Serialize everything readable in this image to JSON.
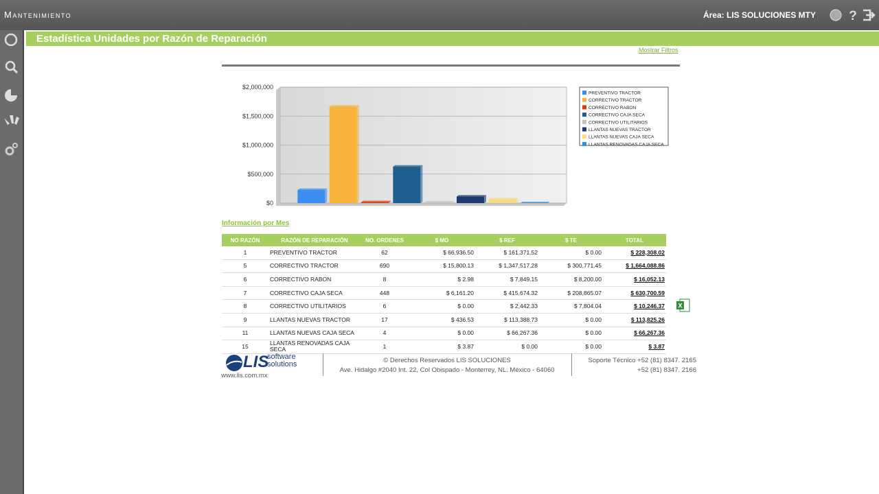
{
  "header": {
    "app": "Mantenimiento",
    "area": "Área: LIS SOLUCIONES MTY"
  },
  "page_title": "Estadística Unidades por Razón de Reparación",
  "filter_link": "Mostrar Filtros",
  "chart_data": {
    "type": "bar",
    "categories": [
      null
    ],
    "series": [
      {
        "name": "PREVENTIVO TRACTOR",
        "color": "#3b8ef0",
        "values": [
          228308.02
        ]
      },
      {
        "name": "CORRECTIVO TRACTOR",
        "color": "#f7b33b",
        "values": [
          1664088.86
        ]
      },
      {
        "name": "CORRECTIVO RABON",
        "color": "#d83a10",
        "values": [
          16052.13
        ]
      },
      {
        "name": "CORRECTIVO CAJA SECA",
        "color": "#1f5f8f",
        "values": [
          630700.59
        ]
      },
      {
        "name": "CORRECTIVO UTILITARIOS",
        "color": "#c0c0c8",
        "values": [
          10246.37
        ]
      },
      {
        "name": "LLANTAS NUEVAS TRACTOR",
        "color": "#1c3a6e",
        "values": [
          113825.26
        ]
      },
      {
        "name": "LLANTAS NUEVAS CAJA SECA",
        "color": "#f5dc85",
        "values": [
          66267.36
        ]
      },
      {
        "name": "LLANTAS RENOVADAS CAJA SECA",
        "color": "#2f8fd8",
        "values": [
          3.87
        ]
      }
    ],
    "ylim": [
      0,
      2000000
    ],
    "yticks": [
      {
        "value": 0,
        "label": "$0"
      },
      {
        "value": 500000,
        "label": "$500,000"
      },
      {
        "value": 1000000,
        "label": "$1,000,000"
      },
      {
        "value": 1500000,
        "label": "$1,500,000"
      },
      {
        "value": 2000000,
        "label": "$2,000,000"
      }
    ],
    "grid": true,
    "legend": "right"
  },
  "section_title": "Información por Mes",
  "table": {
    "columns": [
      "NO RAZÓN",
      "RAZÓN DE REPARACIÓN",
      "NO. ORDENES",
      "$ MO",
      "$ REF",
      "$ TE",
      "TOTAL"
    ],
    "rows": [
      [
        "1",
        "PREVENTIVO TRACTOR",
        "62",
        "$ 66,936.50",
        "$ 161,371.52",
        "$ 0.00",
        "$ 228,308.02"
      ],
      [
        "5",
        "CORRECTIVO TRACTOR",
        "690",
        "$ 15,800.13",
        "$ 1,347,517.28",
        "$ 300,771.45",
        "$ 1,664,088.86"
      ],
      [
        "6",
        "CORRECTIVO RABON",
        "8",
        "$ 2.98",
        "$ 7,849.15",
        "$ 8,200.00",
        "$ 16,052.13"
      ],
      [
        "7",
        "CORRECTIVO CAJA SECA",
        "448",
        "$ 6,161.20",
        "$ 415,674.32",
        "$ 208,865.07",
        "$ 630,700.59"
      ],
      [
        "8",
        "CORRECTIVO UTILITARIOS",
        "6",
        "$ 0.00",
        "$ 2,442.33",
        "$ 7,804.04",
        "$ 10,246.37"
      ],
      [
        "9",
        "LLANTAS NUEVAS TRACTOR",
        "17",
        "$ 436.53",
        "$ 113,388.73",
        "$ 0.00",
        "$ 113,825.26"
      ],
      [
        "11",
        "LLANTAS NUEVAS CAJA SECA",
        "4",
        "$ 0.00",
        "$ 66,267.36",
        "$ 0.00",
        "$ 66,267.36"
      ],
      [
        "15",
        "LLANTAS RENOVADAS CAJA SECA",
        "1",
        "$ 3.87",
        "$ 0.00",
        "$ 0.00",
        "$ 3.87"
      ]
    ]
  },
  "footer": {
    "logo": "LIS",
    "logo_sub1": "software",
    "logo_sub2": "solutions",
    "url": "www.lis.com.mx",
    "copyright": "© Derechos Reservados LIS SOLUCIONES",
    "address": "Ave. Hidalgo #2040 Int. 22, Col Obispado - Monterrey, NL. México - 64060",
    "support1": "Soporte Técnico +52 (81) 8347. 2165",
    "support2": "+52 (81) 8347. 2166"
  }
}
